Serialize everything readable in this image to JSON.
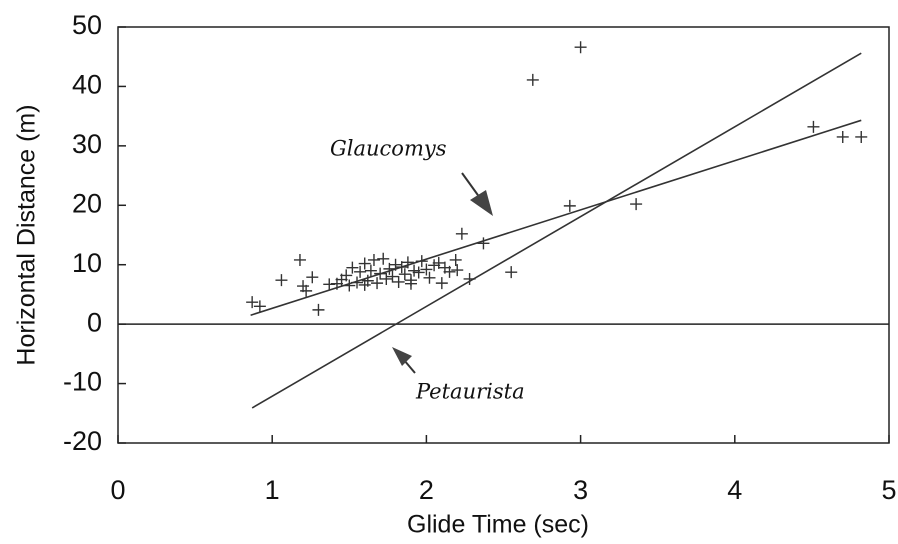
{
  "chart_data": {
    "type": "scatter",
    "x_label": "Glide Time (sec)",
    "y_label": "Horizontal Distance (m)",
    "xlim": [
      0,
      5
    ],
    "xticks": [
      0,
      1,
      2,
      3,
      4,
      5
    ],
    "ylim": [
      -20,
      50
    ],
    "yticks": [
      -20,
      -10,
      0,
      10,
      20,
      30,
      40,
      50
    ],
    "grid": false,
    "color": "#333333",
    "x": [
      0.87,
      0.92,
      1.06,
      1.18,
      1.2,
      1.22,
      1.26,
      1.3,
      1.37,
      1.42,
      1.45,
      1.48,
      1.5,
      1.52,
      1.55,
      1.57,
      1.6,
      1.6,
      1.62,
      1.64,
      1.66,
      1.68,
      1.7,
      1.72,
      1.74,
      1.76,
      1.78,
      1.8,
      1.82,
      1.84,
      1.86,
      1.88,
      1.9,
      1.9,
      1.92,
      1.95,
      1.97,
      2.0,
      2.02,
      2.05,
      2.08,
      2.1,
      2.12,
      2.15,
      2.19,
      2.2,
      2.23,
      2.28,
      2.37,
      2.55,
      2.69,
      2.93,
      3.0,
      3.36,
      4.51,
      4.7,
      4.82
    ],
    "y": [
      3.7,
      3.0,
      7.4,
      10.8,
      6.4,
      5.6,
      7.9,
      2.4,
      6.7,
      6.8,
      7.5,
      8.2,
      6.5,
      9.5,
      7.0,
      8.8,
      10.2,
      6.6,
      7.3,
      9.0,
      10.8,
      6.9,
      8.5,
      11.0,
      7.6,
      9.3,
      8.0,
      10.0,
      7.1,
      9.6,
      8.4,
      10.4,
      7.4,
      6.8,
      9.0,
      8.7,
      10.6,
      9.2,
      7.8,
      9.9,
      10.3,
      6.9,
      9.5,
      8.8,
      10.8,
      9.1,
      15.2,
      7.6,
      13.6,
      8.75,
      41.1,
      19.9,
      46.6,
      20.2,
      33.2,
      31.5,
      31.5
    ],
    "lines": [
      {
        "name": "Glaucomys",
        "x": [
          0.86,
          4.82
        ],
        "y": [
          1.5,
          34.3
        ]
      },
      {
        "name": "Petaurista",
        "x": [
          0.87,
          4.82
        ],
        "y": [
          -14.1,
          45.6
        ]
      }
    ]
  }
}
